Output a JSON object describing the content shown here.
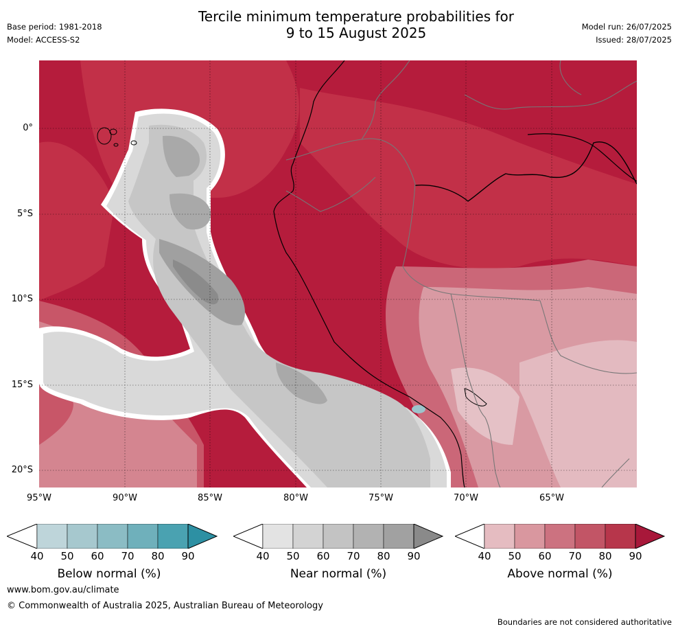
{
  "title_line1": "Tercile minimum temperature probabilities for",
  "title_line2": "9 to 15 August 2025",
  "meta": {
    "base_period": "Base period: 1981-2018",
    "model": "Model: ACCESS-S2",
    "model_run": "Model run: 26/07/2025",
    "issued": "Issued: 28/07/2025"
  },
  "map": {
    "lat_labels": [
      "0°",
      "5°S",
      "10°S",
      "15°S",
      "20°S"
    ],
    "lon_labels": [
      "95°W",
      "90°W",
      "85°W",
      "80°W",
      "75°W",
      "70°W",
      "65°W"
    ]
  },
  "colorbars": [
    {
      "label": "Below normal (%)",
      "ticks": [
        "40",
        "50",
        "60",
        "70",
        "80",
        "90"
      ],
      "colors": [
        "#bed5da",
        "#a6c8ce",
        "#8bbcc4",
        "#6fb0bb",
        "#4aa2b1",
        "#2d90a3"
      ]
    },
    {
      "label": "Near normal (%)",
      "ticks": [
        "40",
        "50",
        "60",
        "70",
        "80",
        "90"
      ],
      "colors": [
        "#e3e3e3",
        "#d3d3d3",
        "#c3c3c3",
        "#b2b2b2",
        "#a1a1a1",
        "#8a8a8a"
      ]
    },
    {
      "label": "Above normal (%)",
      "ticks": [
        "40",
        "50",
        "60",
        "70",
        "80",
        "90"
      ],
      "colors": [
        "#e5bcc1",
        "#d9979f",
        "#cc7280",
        "#c25566",
        "#b7364b",
        "#a8183a"
      ]
    }
  ],
  "footer": {
    "website": "www.bom.gov.au/climate",
    "copyright": "© Commonwealth of Australia 2025, Australian Bureau of Meteorology",
    "disclaimer": "Boundaries are not considered authoritative"
  }
}
